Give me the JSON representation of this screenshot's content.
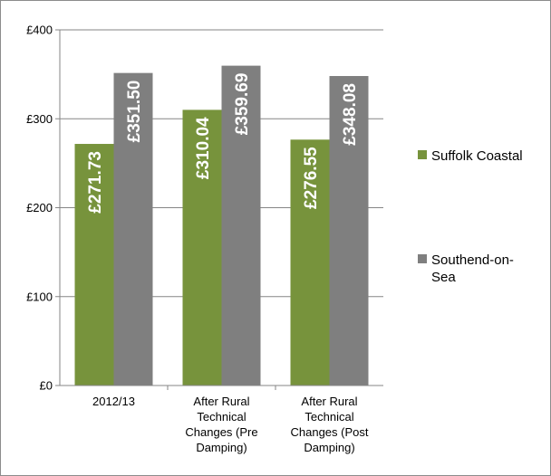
{
  "chart_data": {
    "type": "bar",
    "title": "",
    "xlabel": "",
    "ylabel": "",
    "ylim": [
      0,
      400
    ],
    "yticks": [
      0,
      100,
      200,
      300,
      400
    ],
    "ytick_labels": [
      "£0",
      "£100",
      "£200",
      "£300",
      "£400"
    ],
    "grid": true,
    "legend_position": "right",
    "categories": [
      [
        "2012/13"
      ],
      [
        "After Rural",
        "Technical",
        "Changes (Pre",
        "Damping)"
      ],
      [
        "After Rural",
        "Technical",
        "Changes (Post",
        "Damping)"
      ]
    ],
    "series": [
      {
        "name": "Suffolk Coastal",
        "legend_lines": [
          "Suffolk Coastal"
        ],
        "color": "#77933c",
        "values": [
          271.73,
          310.04,
          276.55
        ],
        "labels": [
          "£271.73",
          "£310.04",
          "£276.55"
        ]
      },
      {
        "name": "Southend-on-Sea",
        "legend_lines": [
          "Southend-on-",
          "Sea"
        ],
        "color": "#7f7f7f",
        "values": [
          351.5,
          359.69,
          348.08
        ],
        "labels": [
          "£351.50",
          "£359.69",
          "£348.08"
        ]
      }
    ]
  }
}
